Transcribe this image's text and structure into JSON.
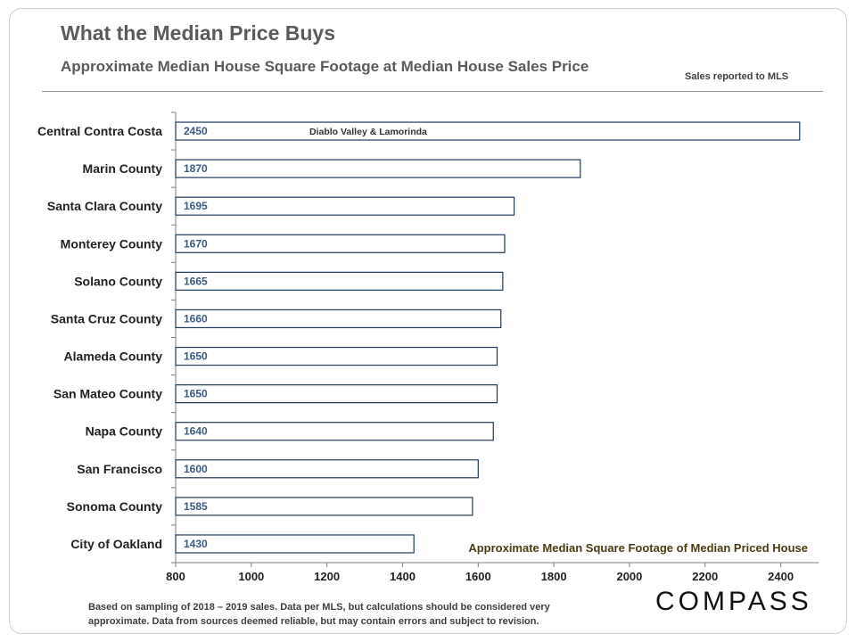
{
  "title": "What the Median Price Buys",
  "subtitle": "Approximate Median House Square Footage at Median House Sales Price",
  "source_note": "Sales reported to MLS",
  "footer_note": "Based on sampling of 2018 – 2019 sales. Data per MLS, but calculations  should be considered very approximate. Data from sources deemed reliable, but may contain errors and subject to revision.",
  "logo": "COMPASS",
  "colors": {
    "bar_border": "#1f3a5a",
    "value_label": "#3b5b85",
    "axis": "#7f7f7f",
    "text": "#222222",
    "legend_text": "#4a3c12"
  },
  "chart_data": {
    "type": "bar",
    "orientation": "horizontal",
    "categories": [
      "Central Contra Costa",
      "Marin County",
      "Santa Clara County",
      "Monterey County",
      "Solano County",
      "Santa Cruz County",
      "Alameda County",
      "San Mateo County",
      "Napa County",
      "San Francisco",
      "Sonoma County",
      "City of Oakland"
    ],
    "values": [
      2450,
      1870,
      1695,
      1670,
      1665,
      1660,
      1650,
      1650,
      1640,
      1600,
      1585,
      1430
    ],
    "xlim": [
      800,
      2500
    ],
    "xticks": [
      800,
      1000,
      1200,
      1400,
      1600,
      1800,
      2000,
      2200,
      2400
    ],
    "legend": "Approximate Median Square Footage of Median Priced House",
    "annotations": [
      {
        "category": "Central Contra Costa",
        "text": "Diablo Valley & Lamorinda"
      }
    ],
    "xlabel": "",
    "ylabel": "",
    "grid": false
  }
}
